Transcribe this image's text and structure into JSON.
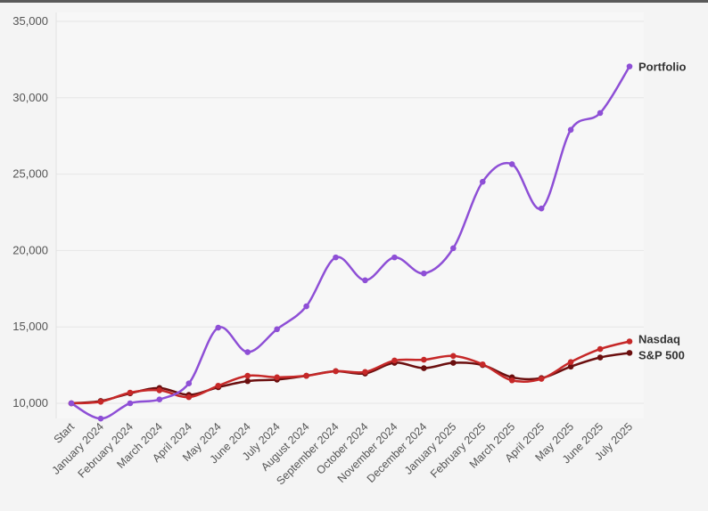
{
  "chart_data": {
    "type": "line",
    "title": "",
    "xlabel": "",
    "ylabel": "",
    "ylim": [
      9000,
      35000
    ],
    "y_ticks": [
      10000,
      15000,
      20000,
      25000,
      30000,
      35000
    ],
    "y_tick_labels": [
      "10,000",
      "15,000",
      "20,000",
      "25,000",
      "30,000",
      "35,000"
    ],
    "grid": true,
    "legend": "labels at line ends (right)",
    "categories": [
      "Start",
      "January 2024",
      "February 2024",
      "March 2024",
      "April 2024",
      "May 2024",
      "June 2024",
      "July 2024",
      "August 2024",
      "September 2024",
      "October 2024",
      "November 2024",
      "December 2024",
      "January 2025",
      "February 2025",
      "March 2025",
      "April 2025",
      "May 2025",
      "June 2025",
      "July 2025"
    ],
    "series": [
      {
        "name": "Portfolio",
        "color": "#8e4fd6",
        "values": [
          10000,
          9000,
          10000,
          10250,
          11300,
          14950,
          13350,
          14850,
          16350,
          19550,
          18050,
          19550,
          18500,
          20150,
          24500,
          25650,
          22750,
          27900,
          29000,
          32050
        ]
      },
      {
        "name": "Nasdaq",
        "color": "#c62828",
        "values": [
          10000,
          10100,
          10700,
          10850,
          10400,
          11150,
          11800,
          11700,
          11800,
          12100,
          12050,
          12800,
          12850,
          13100,
          12550,
          11500,
          11600,
          12700,
          13550,
          14050
        ]
      },
      {
        "name": "S&P 500",
        "color": "#6b0f0f",
        "values": [
          10000,
          10150,
          10650,
          11000,
          10550,
          11050,
          11450,
          11550,
          11800,
          12100,
          11950,
          12650,
          12300,
          12650,
          12500,
          11700,
          11650,
          12400,
          13000,
          13300
        ]
      }
    ]
  }
}
